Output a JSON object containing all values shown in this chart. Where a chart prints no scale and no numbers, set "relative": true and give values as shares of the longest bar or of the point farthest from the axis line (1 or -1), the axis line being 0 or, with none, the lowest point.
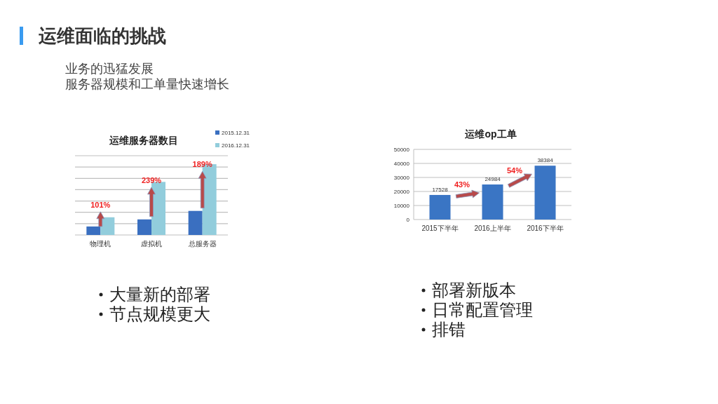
{
  "chart_data": [
    {
      "type": "other",
      "title": "运维面临的挑战",
      "annotations": [
        "业务的迅猛发展",
        "服务器规模和工单量快速增长"
      ]
    },
    {
      "type": "bar",
      "title": "运维服务器数目",
      "categories": [
        "物理机",
        "虚拟机",
        "总服务器"
      ],
      "relative": true,
      "legend": "top right",
      "grid": "y",
      "series": [
        {
          "name": "2015.12.31",
          "color": "#3a6fc0",
          "values": [
            0.12,
            0.22,
            0.34
          ]
        },
        {
          "name": "2016.12.31",
          "color": "#92cddc",
          "values": [
            0.25,
            0.75,
            1
          ]
        }
      ],
      "annotations": [
        "101%",
        "239%",
        "189%",
        "大量新的部署",
        "节点规模更大"
      ]
    },
    {
      "type": "bar",
      "title": "运维op工单",
      "categories": [
        "2015下半年",
        "2016上半年",
        "2016下半年"
      ],
      "values": [
        17528,
        24984,
        38384
      ],
      "color": "#3a75c4",
      "ylim": [
        0,
        50000
      ],
      "yticks": [
        0,
        10000,
        20000,
        30000,
        40000,
        50000
      ],
      "grid": "y",
      "data_labels": true,
      "annotations": [
        "43%",
        "54%",
        "部署新版本",
        "日常配置管理",
        "排错"
      ]
    }
  ]
}
